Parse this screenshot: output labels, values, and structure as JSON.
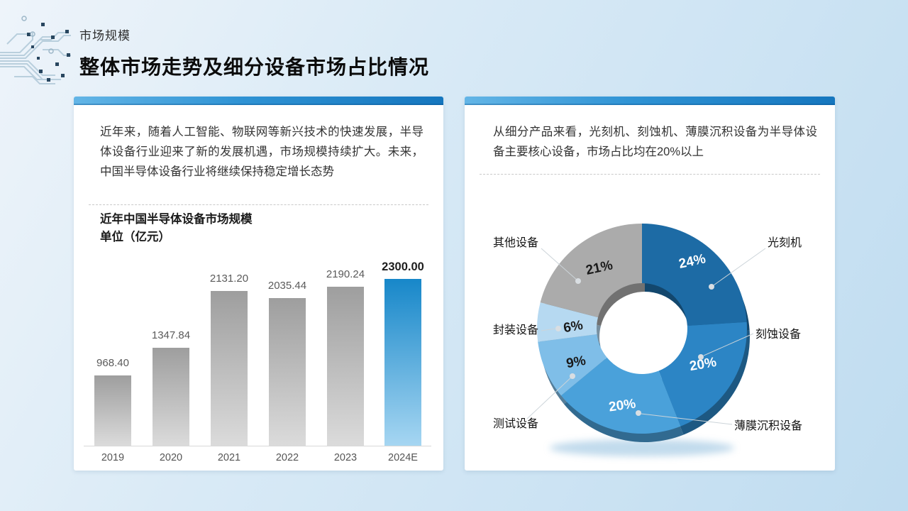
{
  "slide": {
    "eyebrow": "市场规模",
    "title": "整体市场走势及细分设备市场占比情况"
  },
  "left_card": {
    "paragraph": "近年来，随着人工智能、物联网等新兴技术的快速发展，半导体设备行业迎来了新的发展机遇，市场规模持续扩大。未来，中国半导体设备行业将继续保持稳定增长态势"
  },
  "right_card": {
    "paragraph": "从细分产品来看，光刻机、刻蚀机、薄膜沉积设备为半导体设备主要核心设备，市场占比均在20%以上"
  },
  "icons": {
    "decoration": "circuit-board-traces"
  },
  "colors": {
    "accent_blue": "#1778c0",
    "card_bar_gradient": [
      "#63b5e6",
      "#1576be"
    ],
    "background_gradient": [
      "#eef4fa",
      "#bfdcf0"
    ]
  },
  "chart_data": [
    {
      "type": "bar",
      "title": "近年中国半导体设备市场规模",
      "unit_label": "单位（亿元）",
      "categories": [
        "2019",
        "2020",
        "2021",
        "2022",
        "2023",
        "2024E"
      ],
      "values": [
        968.4,
        1347.84,
        2131.2,
        2035.44,
        2190.24,
        2300.0
      ],
      "value_labels": [
        "968.40",
        "1347.84",
        "2131.20",
        "2035.44",
        "2190.24",
        "2300.00"
      ],
      "highlight_index": 5,
      "ylim": [
        0,
        2300
      ],
      "grid": "off",
      "bar_color_top": "#9e9e9e",
      "bar_color_bottom": "#dbdbdb",
      "highlight_color_top": "#1787c9",
      "highlight_color_bottom": "#a6d6f2"
    },
    {
      "type": "pie",
      "subtype": "donut-3d",
      "categories": [
        "光刻机",
        "刻蚀设备",
        "薄膜沉积设备",
        "测试设备",
        "封装设备",
        "其他设备"
      ],
      "values": [
        24,
        20,
        20,
        9,
        6,
        21
      ],
      "value_labels": [
        "24%",
        "20%",
        "20%",
        "9%",
        "6%",
        "21%"
      ],
      "colors": [
        "#1d6ba5",
        "#2c85c5",
        "#4aa1da",
        "#7fbee8",
        "#b6d9f1",
        "#ababab"
      ],
      "pct_text_colors": [
        "#ffffff",
        "#ffffff",
        "#ffffff",
        "#1a1a1a",
        "#1a1a1a",
        "#1a1a1a"
      ],
      "start_angle": "12-oclock",
      "direction": "clockwise",
      "legend_position": "callout-labels"
    }
  ]
}
